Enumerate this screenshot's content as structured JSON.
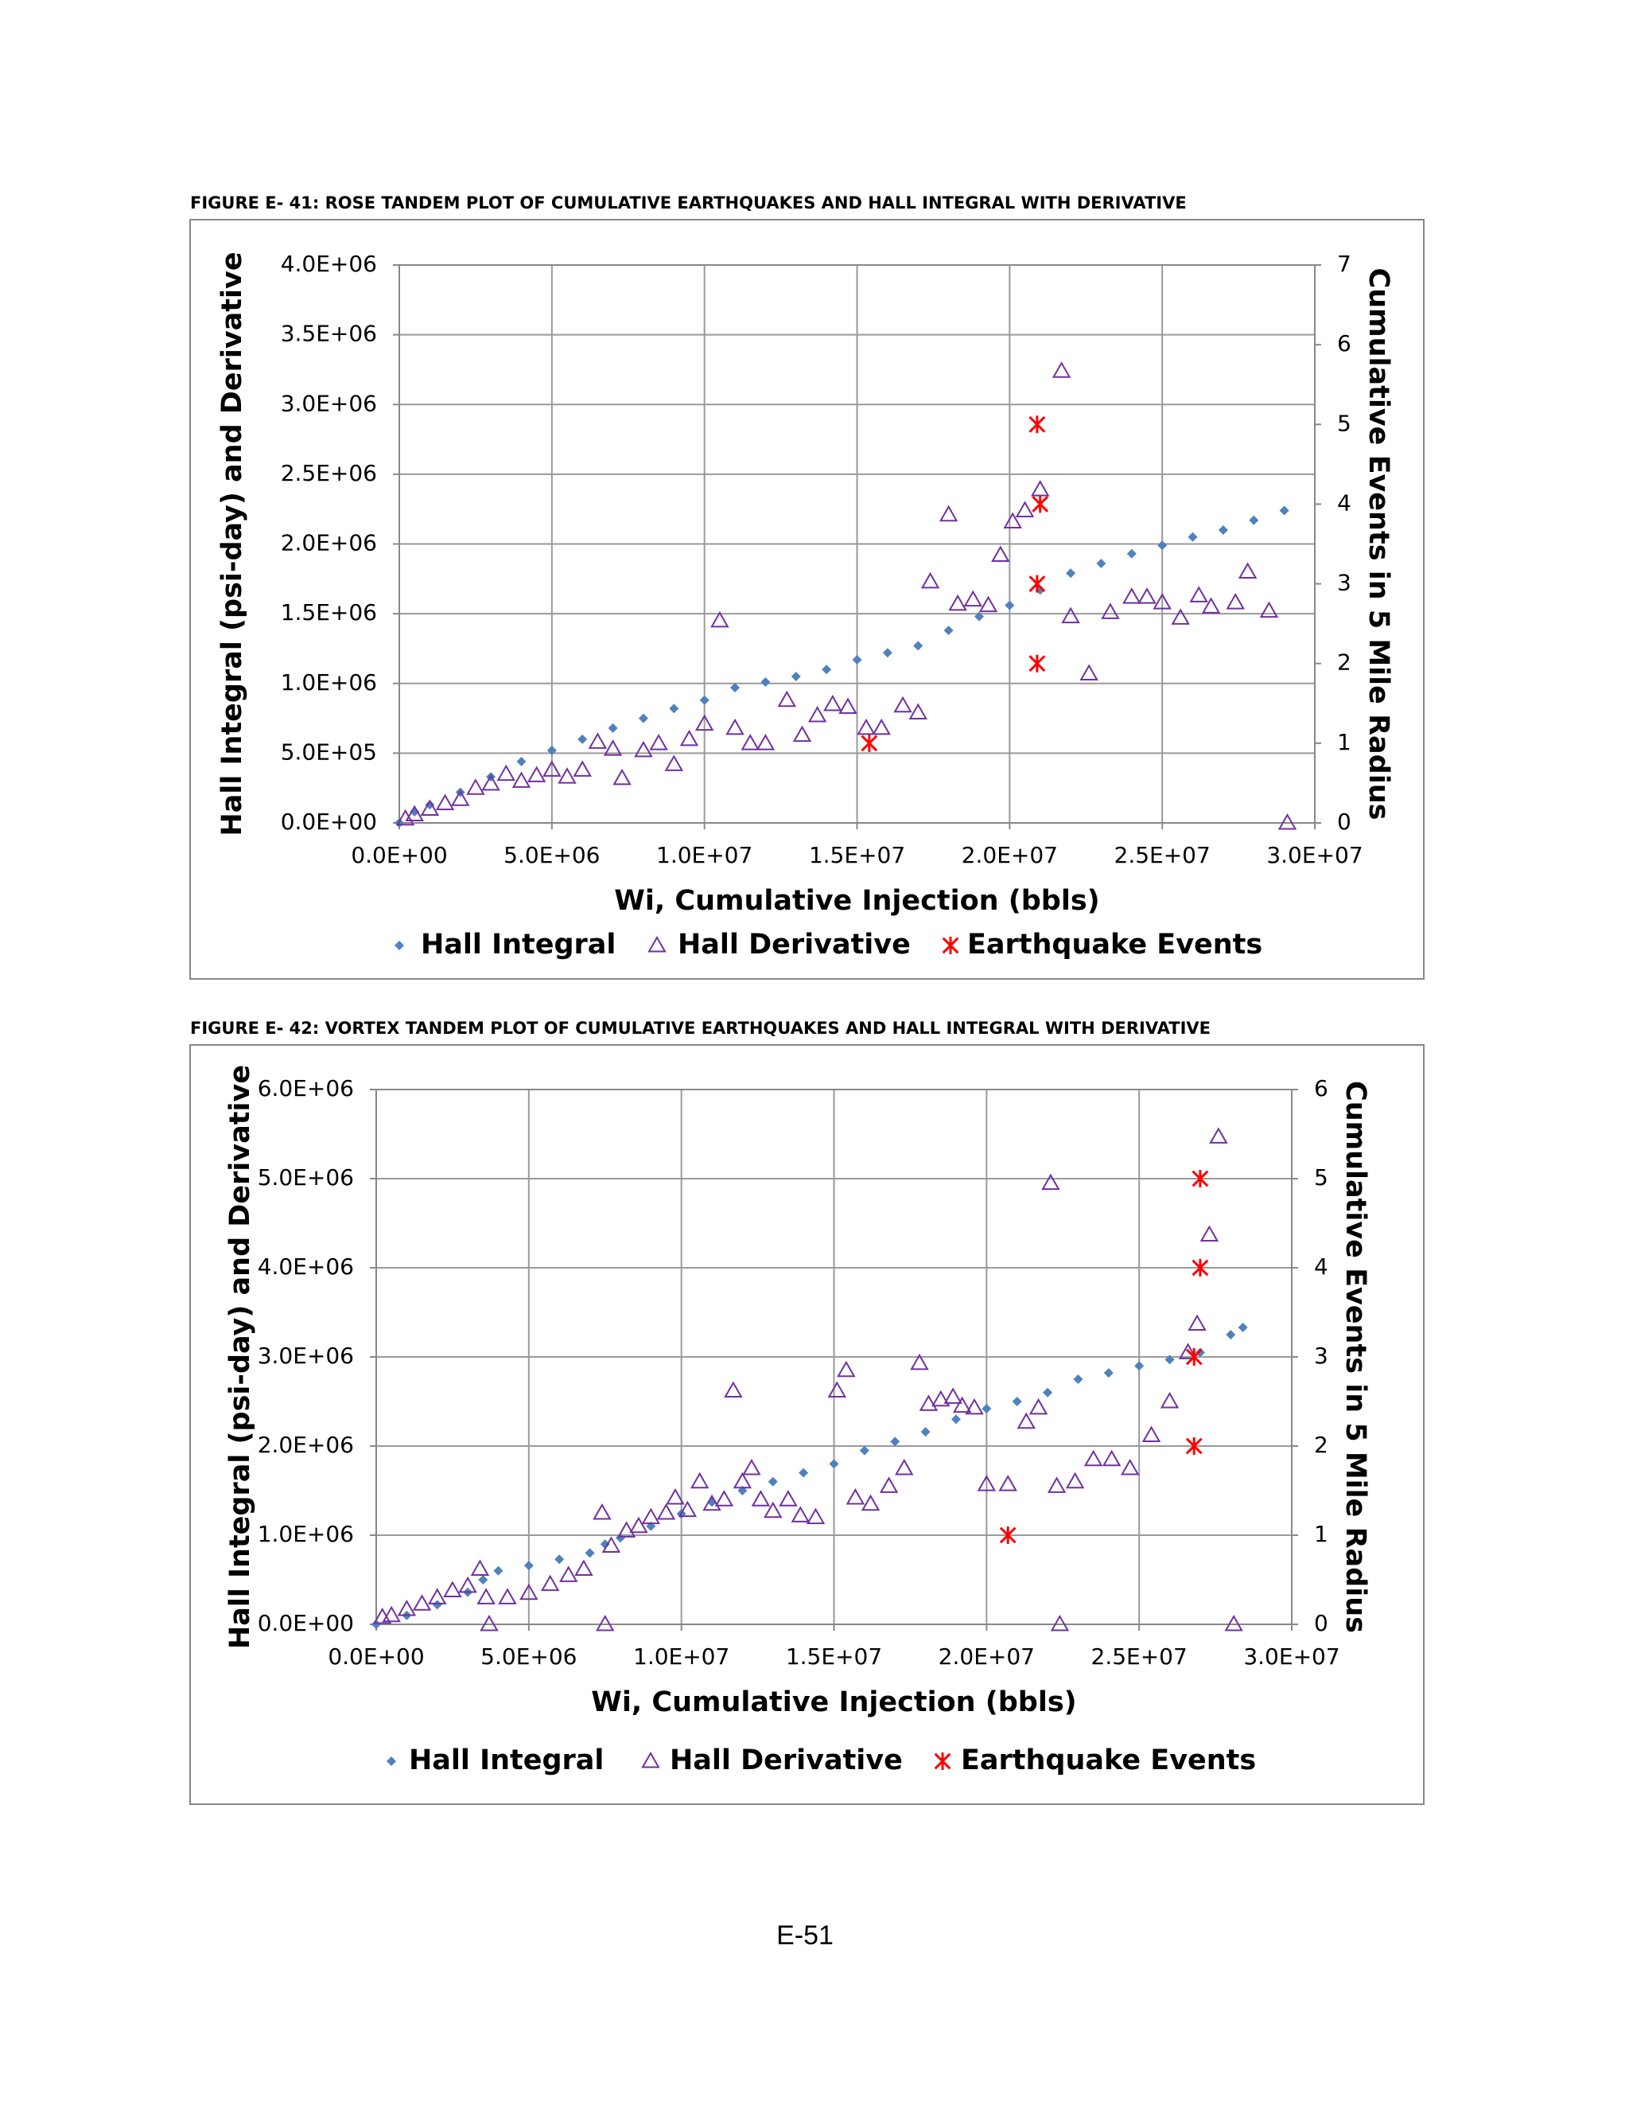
{
  "page_number": "E-51",
  "chart_data": [
    {
      "type": "scatter",
      "title": "FIGURE E- 41:  ROSE TANDEM PLOT OF CUMULATIVE EARTHQUAKES AND HALL INTEGRAL WITH DERIVATIVE",
      "xlabel": "Wi, Cumulative Injection (bbls)",
      "ylabel": "Hall Integral (psi-day) and Derivative",
      "y2label": "Cumulative Events in 5 Mile Radius",
      "xlim": [
        0,
        30000000.0
      ],
      "ylim": [
        0,
        4000000.0
      ],
      "y2lim": [
        0,
        7
      ],
      "xticks": [
        {
          "value": 0,
          "label": "0.0E+00"
        },
        {
          "value": 5000000.0,
          "label": "5.0E+06"
        },
        {
          "value": 10000000.0,
          "label": "1.0E+07"
        },
        {
          "value": 15000000.0,
          "label": "1.5E+07"
        },
        {
          "value": 20000000.0,
          "label": "2.0E+07"
        },
        {
          "value": 25000000.0,
          "label": "2.5E+07"
        },
        {
          "value": 30000000.0,
          "label": "3.0E+07"
        }
      ],
      "yticks": [
        {
          "value": 0,
          "label": "0.0E+00"
        },
        {
          "value": 500000.0,
          "label": "5.0E+05"
        },
        {
          "value": 1000000.0,
          "label": "1.0E+06"
        },
        {
          "value": 1500000.0,
          "label": "1.5E+06"
        },
        {
          "value": 2000000.0,
          "label": "2.0E+06"
        },
        {
          "value": 2500000.0,
          "label": "2.5E+06"
        },
        {
          "value": 3000000.0,
          "label": "3.0E+06"
        },
        {
          "value": 3500000.0,
          "label": "3.5E+06"
        },
        {
          "value": 4000000.0,
          "label": "4.0E+06"
        }
      ],
      "y2ticks": [
        0,
        1,
        2,
        3,
        4,
        5,
        6,
        7
      ],
      "grid": true,
      "legend": "bottom",
      "series": [
        {
          "name": "Hall Integral",
          "color": "#4f81bd",
          "marker": "diamond",
          "x": [
            0,
            500000.0,
            1000000.0,
            2000000.0,
            3000000.0,
            4000000.0,
            5000000.0,
            6000000.0,
            7000000.0,
            8000000.0,
            9000000.0,
            10000000.0,
            11000000.0,
            12000000.0,
            13000000.0,
            14000000.0,
            15000000.0,
            16000000.0,
            17000000.0,
            18000000.0,
            19000000.0,
            20000000.0,
            21000000.0,
            22000000.0,
            23000000.0,
            24000000.0,
            25000000.0,
            26000000.0,
            27000000.0,
            28000000.0,
            29000000.0
          ],
          "values": [
            0,
            80000.0,
            130000.0,
            220000.0,
            330000.0,
            440000.0,
            520000.0,
            600000.0,
            680000.0,
            750000.0,
            820000.0,
            880000.0,
            970000.0,
            1010000.0,
            1050000.0,
            1100000.0,
            1170000.0,
            1220000.0,
            1270000.0,
            1380000.0,
            1480000.0,
            1560000.0,
            1670000.0,
            1790000.0,
            1860000.0,
            1930000.0,
            1990000.0,
            2050000.0,
            2100000.0,
            2170000.0,
            2240000.0
          ]
        },
        {
          "name": "Hall Derivative",
          "color": "#7030a0",
          "marker": "triangle",
          "x": [
            200000.0,
            500000.0,
            1000000.0,
            1500000.0,
            2000000.0,
            2500000.0,
            3000000.0,
            3500000.0,
            4000000.0,
            4500000.0,
            5000000.0,
            5500000.0,
            6000000.0,
            6500000.0,
            7000000.0,
            7300000.0,
            8000000.0,
            8500000.0,
            9000000.0,
            9500000.0,
            10000000.0,
            10500000.0,
            11000000.0,
            11500000.0,
            12000000.0,
            12700000.0,
            13200000.0,
            13700000.0,
            14200000.0,
            14700000.0,
            15300000.0,
            15800000.0,
            16500000.0,
            17000000.0,
            17400000.0,
            18000000.0,
            18300000.0,
            18800000.0,
            19300000.0,
            19700000.0,
            20100000.0,
            20500000.0,
            21000000.0,
            21700000.0,
            22000000.0,
            22600000.0,
            23300000.0,
            24000000.0,
            24500000.0,
            25000000.0,
            25600000.0,
            26200000.0,
            26600000.0,
            27400000.0,
            27800000.0,
            28500000.0,
            29100000.0
          ],
          "values": [
            30000.0,
            60000.0,
            100000.0,
            140000.0,
            170000.0,
            250000.0,
            280000.0,
            350000.0,
            300000.0,
            340000.0,
            380000.0,
            330000.0,
            380000.0,
            580000.0,
            530000.0,
            320000.0,
            520000.0,
            570000.0,
            420000.0,
            600000.0,
            710000.0,
            1450000.0,
            680000.0,
            570000.0,
            570000.0,
            880000.0,
            630000.0,
            770000.0,
            850000.0,
            830000.0,
            680000.0,
            680000.0,
            840000.0,
            790000.0,
            1730000.0,
            2210000.0,
            1570000.0,
            1600000.0,
            1560000.0,
            1920000.0,
            2160000.0,
            2240000.0,
            2390000.0,
            3240000.0,
            1480000.0,
            1070000.0,
            1510000.0,
            1620000.0,
            1620000.0,
            1580000.0,
            1470000.0,
            1630000.0,
            1550000.0,
            1580000.0,
            1800000.0,
            1520000.0,
            0
          ]
        },
        {
          "name": "Earthquake Events",
          "color": "#ff0000",
          "marker": "star",
          "axis": "y2",
          "x": [
            15400000.0,
            20900000.0,
            20900000.0,
            21000000.0,
            20900000.0
          ],
          "values": [
            1,
            2,
            3,
            4,
            5
          ]
        }
      ]
    },
    {
      "type": "scatter",
      "title": "FIGURE E- 42:  VORTEX TANDEM PLOT OF CUMULATIVE EARTHQUAKES AND HALL INTEGRAL WITH DERIVATIVE",
      "xlabel": "Wi, Cumulative Injection (bbls)",
      "ylabel": "Hall Integral (psi-day) and Derivative",
      "y2label": "Cumulative Events in 5 Mile Radius",
      "xlim": [
        0,
        30000000.0
      ],
      "ylim": [
        0,
        6000000.0
      ],
      "y2lim": [
        0,
        6
      ],
      "xticks": [
        {
          "value": 0,
          "label": "0.0E+00"
        },
        {
          "value": 5000000.0,
          "label": "5.0E+06"
        },
        {
          "value": 10000000.0,
          "label": "1.0E+07"
        },
        {
          "value": 15000000.0,
          "label": "1.5E+07"
        },
        {
          "value": 20000000.0,
          "label": "2.0E+07"
        },
        {
          "value": 25000000.0,
          "label": "2.5E+07"
        },
        {
          "value": 30000000.0,
          "label": "3.0E+07"
        }
      ],
      "yticks": [
        {
          "value": 0,
          "label": "0.0E+00"
        },
        {
          "value": 1000000.0,
          "label": "1.0E+06"
        },
        {
          "value": 2000000.0,
          "label": "2.0E+06"
        },
        {
          "value": 3000000.0,
          "label": "3.0E+06"
        },
        {
          "value": 4000000.0,
          "label": "4.0E+06"
        },
        {
          "value": 5000000.0,
          "label": "5.0E+06"
        },
        {
          "value": 6000000.0,
          "label": "6.0E+06"
        }
      ],
      "y2ticks": [
        0,
        1,
        2,
        3,
        4,
        5,
        6
      ],
      "grid": true,
      "legend": "bottom",
      "series": [
        {
          "name": "Hall Integral",
          "color": "#4f81bd",
          "marker": "diamond",
          "x": [
            0,
            1000000.0,
            2000000.0,
            3000000.0,
            3500000.0,
            4000000.0,
            5000000.0,
            6000000.0,
            7000000.0,
            7500000.0,
            8000000.0,
            9000000.0,
            10000000.0,
            11000000.0,
            12000000.0,
            13000000.0,
            14000000.0,
            15000000.0,
            16000000.0,
            17000000.0,
            18000000.0,
            19000000.0,
            20000000.0,
            21000000.0,
            22000000.0,
            23000000.0,
            24000000.0,
            25000000.0,
            26000000.0,
            27000000.0,
            28000000.0,
            28400000.0
          ],
          "values": [
            0,
            100000.0,
            220000.0,
            360000.0,
            500000.0,
            600000.0,
            660000.0,
            730000.0,
            800000.0,
            900000.0,
            970000.0,
            1100000.0,
            1240000.0,
            1370000.0,
            1500000.0,
            1600000.0,
            1700000.0,
            1800000.0,
            1950000.0,
            2050000.0,
            2160000.0,
            2300000.0,
            2420000.0,
            2500000.0,
            2600000.0,
            2750000.0,
            2820000.0,
            2900000.0,
            2970000.0,
            3050000.0,
            3250000.0,
            3330000.0
          ]
        },
        {
          "name": "Hall Derivative",
          "color": "#7030a0",
          "marker": "triangle",
          "x": [
            200000.0,
            500000.0,
            1000000.0,
            1500000.0,
            2000000.0,
            2500000.0,
            3000000.0,
            3400000.0,
            3600000.0,
            3700000.0,
            4300000.0,
            5000000.0,
            5700000.0,
            6300000.0,
            6800000.0,
            7400000.0,
            7500000.0,
            7700000.0,
            8200000.0,
            8600000.0,
            9000000.0,
            9500000.0,
            9800000.0,
            10200000.0,
            10600000.0,
            11000000.0,
            11400000.0,
            11700000.0,
            12000000.0,
            12300000.0,
            12600000.0,
            13000000.0,
            13500000.0,
            13900000.0,
            14400000.0,
            15100000.0,
            15400000.0,
            15700000.0,
            16200000.0,
            16800000.0,
            17300000.0,
            17800000.0,
            18100000.0,
            18500000.0,
            18900000.0,
            19200000.0,
            19600000.0,
            20000000.0,
            20700000.0,
            21300000.0,
            21700000.0,
            22100000.0,
            22300000.0,
            22400000.0,
            22900000.0,
            23500000.0,
            24100000.0,
            24700000.0,
            25400000.0,
            26000000.0,
            26600000.0,
            26900000.0,
            27300000.0,
            27600000.0,
            28100000.0
          ],
          "values": [
            80000.0,
            100000.0,
            170000.0,
            230000.0,
            300000.0,
            380000.0,
            430000.0,
            620000.0,
            300000.0,
            0,
            300000.0,
            350000.0,
            450000.0,
            550000.0,
            620000.0,
            1250000.0,
            0,
            880000.0,
            1050000.0,
            1100000.0,
            1200000.0,
            1250000.0,
            1420000.0,
            1280000.0,
            1600000.0,
            1350000.0,
            1400000.0,
            2620000.0,
            1600000.0,
            1750000.0,
            1400000.0,
            1270000.0,
            1400000.0,
            1220000.0,
            1200000.0,
            2620000.0,
            2850000.0,
            1420000.0,
            1350000.0,
            1550000.0,
            1750000.0,
            2930000.0,
            2470000.0,
            2520000.0,
            2550000.0,
            2450000.0,
            2430000.0,
            1570000.0,
            1570000.0,
            2270000.0,
            2430000.0,
            4950000.0,
            1550000.0,
            0,
            1600000.0,
            1850000.0,
            1850000.0,
            1750000.0,
            2120000.0,
            2500000.0,
            3050000.0,
            3370000.0,
            4370000.0,
            5470000.0,
            0
          ]
        },
        {
          "name": "Earthquake Events",
          "color": "#ff0000",
          "marker": "star",
          "axis": "y2",
          "x": [
            20700000.0,
            26800000.0,
            26800000.0,
            27000000.0,
            27000000.0
          ],
          "values": [
            1,
            2,
            3,
            4,
            5
          ]
        }
      ]
    }
  ]
}
